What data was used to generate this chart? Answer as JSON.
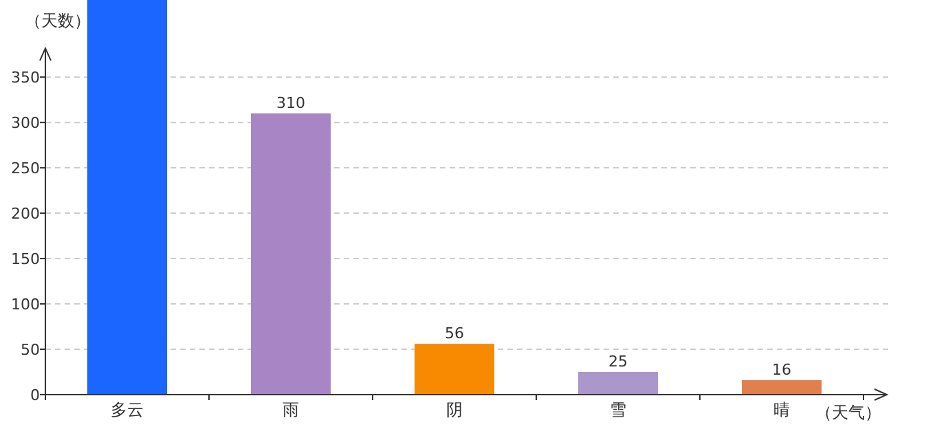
{
  "chart_data": {
    "type": "bar",
    "xlabel": "（天气）",
    "ylabel": "（天数）",
    "categories": [
      "多云",
      "雨",
      "阴",
      "雪",
      "晴"
    ],
    "values": [
      435,
      310,
      56,
      25,
      16
    ],
    "colors": [
      "#1a66ff",
      "#a885c4",
      "#f78a00",
      "#ab97c9",
      "#e0804f"
    ],
    "value_labels": [
      null,
      "310",
      "56",
      "25",
      "16"
    ],
    "ylim": [
      0,
      435
    ],
    "yticks": [
      0,
      50,
      100,
      150,
      200,
      250,
      300,
      350
    ],
    "grid": "y"
  }
}
